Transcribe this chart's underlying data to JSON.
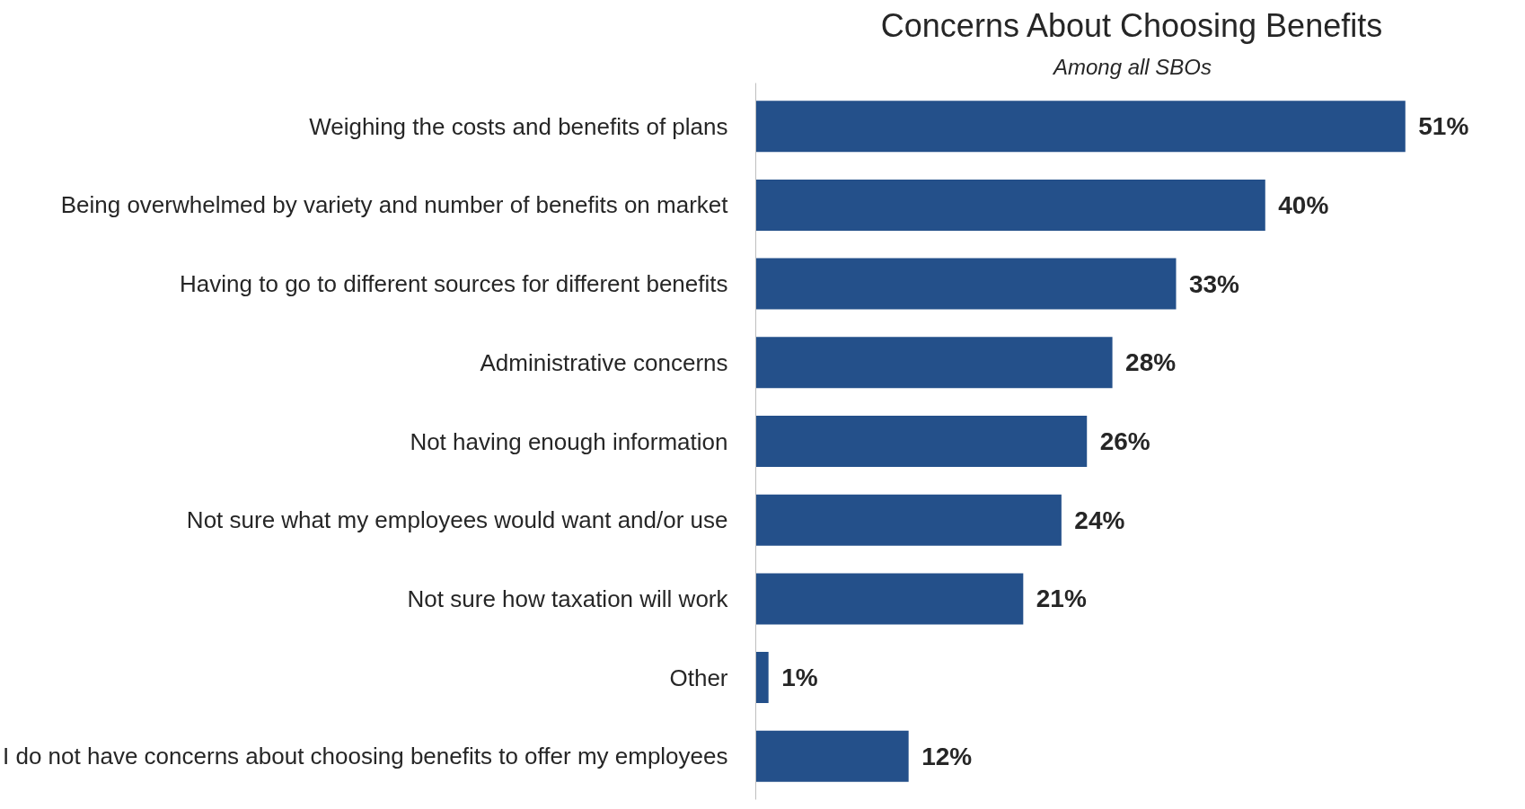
{
  "chart_data": {
    "type": "bar",
    "orientation": "horizontal",
    "title": "Concerns About Choosing Benefits",
    "subtitle": "Among all SBOs",
    "categories": [
      "Weighing the costs and benefits of plans",
      "Being overwhelmed by variety and number of benefits on market",
      "Having to go to different sources for different benefits",
      "Administrative concerns",
      "Not having enough information",
      "Not sure what my employees would want and/or use",
      "Not sure how taxation will work",
      "Other",
      "I do not have concerns about choosing benefits to offer my employees"
    ],
    "values": [
      51,
      40,
      33,
      28,
      26,
      24,
      21,
      1,
      12
    ],
    "value_labels": [
      "51%",
      "40%",
      "33%",
      "28%",
      "26%",
      "24%",
      "21%",
      "1%",
      "12%"
    ],
    "color": "#24508a",
    "grid": false
  }
}
